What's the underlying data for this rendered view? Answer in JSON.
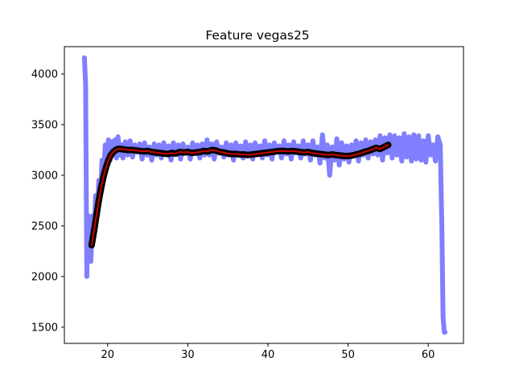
{
  "chart_data": {
    "type": "line",
    "title": "Feature vegas25",
    "xlabel": "",
    "ylabel": "",
    "xlim": [
      14.6,
      64.4
    ],
    "ylim": [
      1340,
      4270
    ],
    "x_ticks": [
      20,
      30,
      40,
      50,
      60
    ],
    "y_ticks": [
      1500,
      2000,
      2500,
      3000,
      3500,
      4000
    ],
    "grid": false,
    "legend": "none",
    "colors": {
      "raw": "#7f7fff",
      "smooth_outline": "#000000",
      "smooth": "#cc0000"
    },
    "series": [
      {
        "style": "thick-light-blue-noisy",
        "x": [
          17.1,
          17.25,
          17.4,
          17.55,
          17.7,
          17.9,
          18.1,
          18.3,
          18.5,
          18.7,
          18.9,
          19.1,
          19.3,
          19.5,
          19.7,
          19.9,
          20.1,
          20.3,
          20.5,
          20.7,
          20.9,
          21.1,
          21.3,
          21.5,
          21.7,
          21.9,
          22.2,
          22.5,
          22.8,
          23.1,
          23.4,
          23.7,
          24.0,
          24.3,
          24.6,
          24.9,
          25.2,
          25.5,
          25.8,
          26.1,
          26.4,
          26.7,
          27.0,
          27.3,
          27.6,
          27.9,
          28.2,
          28.5,
          28.8,
          29.1,
          29.4,
          29.7,
          30.0,
          30.3,
          30.6,
          30.9,
          31.2,
          31.5,
          31.8,
          32.1,
          32.4,
          32.7,
          33.0,
          33.3,
          33.6,
          33.9,
          34.2,
          34.5,
          34.8,
          35.1,
          35.4,
          35.7,
          36.0,
          36.3,
          36.6,
          36.9,
          37.2,
          37.5,
          37.8,
          38.1,
          38.4,
          38.7,
          39.0,
          39.3,
          39.6,
          39.9,
          40.2,
          40.5,
          40.8,
          41.1,
          41.4,
          41.7,
          42.0,
          42.3,
          42.6,
          42.9,
          43.2,
          43.5,
          43.8,
          44.1,
          44.4,
          44.7,
          45.0,
          45.3,
          45.6,
          45.9,
          46.2,
          46.5,
          46.8,
          47.1,
          47.4,
          47.7,
          48.0,
          48.3,
          48.6,
          48.9,
          49.2,
          49.5,
          49.8,
          50.1,
          50.4,
          50.7,
          51.0,
          51.3,
          51.6,
          51.9,
          52.2,
          52.5,
          52.8,
          53.1,
          53.4,
          53.7,
          54.0,
          54.3,
          54.6,
          54.9,
          55.2,
          55.5,
          55.8,
          56.1,
          56.4,
          56.7,
          57.0,
          57.3,
          57.6,
          57.9,
          58.2,
          58.5,
          58.8,
          59.1,
          59.4,
          59.7,
          60.0,
          60.3,
          60.6,
          60.9,
          61.2,
          61.5,
          61.7,
          61.85,
          62.0,
          62.1
        ],
        "y": [
          4160,
          3900,
          2000,
          2600,
          2300,
          2150,
          2600,
          2400,
          2800,
          2600,
          2950,
          2800,
          3150,
          3000,
          3300,
          3100,
          3350,
          3150,
          3330,
          3200,
          3350,
          3170,
          3380,
          3200,
          3300,
          3170,
          3330,
          3200,
          3340,
          3180,
          3300,
          3230,
          3310,
          3160,
          3320,
          3200,
          3280,
          3150,
          3310,
          3200,
          3300,
          3170,
          3320,
          3220,
          3290,
          3150,
          3320,
          3230,
          3300,
          3160,
          3310,
          3220,
          3280,
          3160,
          3320,
          3230,
          3300,
          3170,
          3310,
          3200,
          3350,
          3200,
          3310,
          3160,
          3330,
          3220,
          3280,
          3180,
          3320,
          3200,
          3300,
          3150,
          3320,
          3230,
          3290,
          3170,
          3330,
          3210,
          3300,
          3160,
          3320,
          3220,
          3290,
          3170,
          3340,
          3200,
          3300,
          3160,
          3320,
          3230,
          3290,
          3170,
          3340,
          3210,
          3300,
          3160,
          3330,
          3220,
          3290,
          3170,
          3340,
          3210,
          3300,
          3150,
          3340,
          3200,
          3280,
          3120,
          3400,
          3170,
          3300,
          3000,
          3280,
          3150,
          3360,
          3100,
          3320,
          3160,
          3290,
          3130,
          3300,
          3200,
          3340,
          3140,
          3320,
          3200,
          3350,
          3170,
          3330,
          3210,
          3350,
          3200,
          3390,
          3150,
          3370,
          3220,
          3400,
          3170,
          3390,
          3200,
          3370,
          3140,
          3410,
          3180,
          3380,
          3140,
          3400,
          3160,
          3390,
          3150,
          3340,
          3130,
          3390,
          3200,
          3300,
          3140,
          3380,
          3300,
          2500,
          1600,
          1450,
          1450
        ]
      },
      {
        "style": "black-outline-red-smooth",
        "x": [
          18.0,
          18.3,
          18.6,
          18.9,
          19.2,
          19.5,
          19.8,
          20.1,
          20.4,
          20.7,
          21.0,
          21.3,
          21.6,
          22.0,
          22.5,
          23.0,
          23.5,
          24.0,
          24.5,
          25.0,
          25.5,
          26.0,
          26.5,
          27.0,
          27.5,
          28.0,
          28.5,
          29.0,
          29.5,
          30.0,
          30.5,
          31.0,
          31.5,
          32.0,
          32.5,
          33.0,
          33.5,
          34.0,
          34.5,
          35.0,
          35.5,
          36.0,
          36.5,
          37.0,
          37.5,
          38.0,
          38.5,
          39.0,
          39.5,
          40.0,
          40.5,
          41.0,
          41.5,
          42.0,
          42.5,
          43.0,
          43.5,
          44.0,
          44.5,
          45.0,
          45.5,
          46.0,
          46.5,
          47.0,
          47.5,
          48.0,
          48.5,
          49.0,
          49.5,
          50.0,
          50.5,
          51.0,
          51.5,
          52.0,
          52.5,
          53.0,
          53.5,
          54.0,
          54.5,
          55.0
        ],
        "y": [
          2310,
          2450,
          2600,
          2750,
          2880,
          2990,
          3080,
          3150,
          3200,
          3230,
          3250,
          3260,
          3260,
          3255,
          3250,
          3250,
          3245,
          3240,
          3235,
          3240,
          3230,
          3225,
          3220,
          3215,
          3210,
          3220,
          3215,
          3230,
          3225,
          3230,
          3220,
          3225,
          3230,
          3240,
          3235,
          3250,
          3245,
          3230,
          3225,
          3215,
          3210,
          3210,
          3205,
          3205,
          3200,
          3205,
          3210,
          3215,
          3220,
          3225,
          3230,
          3235,
          3240,
          3240,
          3235,
          3240,
          3235,
          3230,
          3225,
          3230,
          3220,
          3215,
          3210,
          3205,
          3200,
          3205,
          3200,
          3195,
          3190,
          3190,
          3195,
          3205,
          3215,
          3230,
          3240,
          3255,
          3270,
          3260,
          3280,
          3300
        ]
      }
    ]
  }
}
